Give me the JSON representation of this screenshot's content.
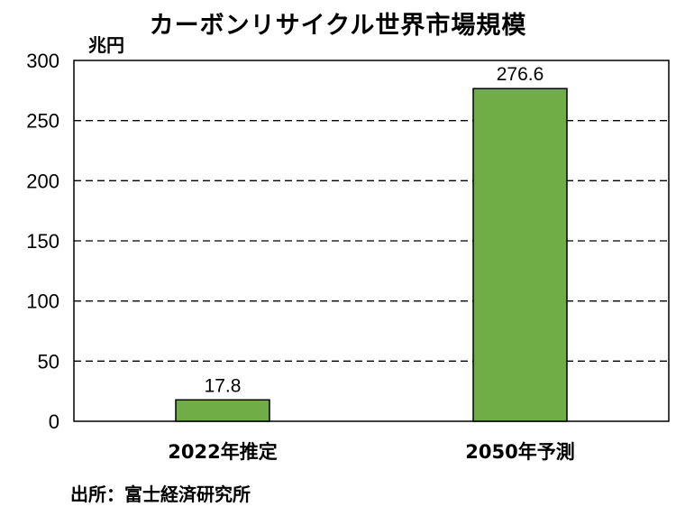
{
  "chart_data": {
    "type": "bar",
    "title": "カーボンリサイクル世界市場規模",
    "unit_label": "兆円",
    "categories": [
      "2022年推定",
      "2050年予測"
    ],
    "values": [
      17.8,
      276.6
    ],
    "data_labels": [
      "17.8",
      "276.6"
    ],
    "ylim": [
      0,
      300
    ],
    "yticks": [
      0,
      50,
      100,
      150,
      200,
      250,
      300
    ],
    "grid": true,
    "bar_color": "#70ad47",
    "bar_edge_color": "#000000",
    "source": "出所：富士経済研究所"
  }
}
